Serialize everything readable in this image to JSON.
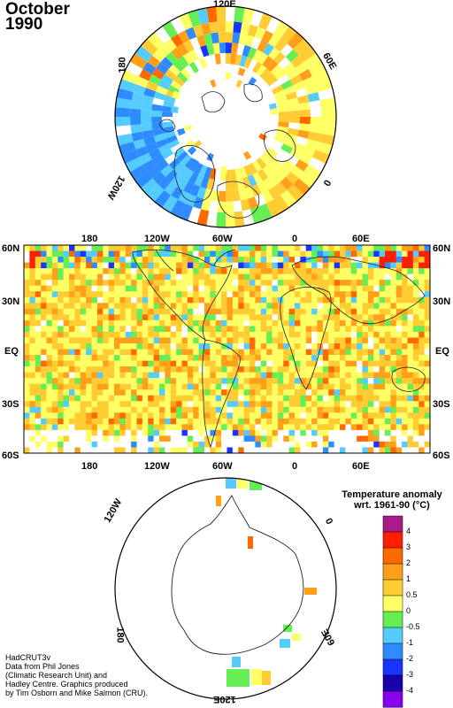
{
  "title": {
    "month": "October",
    "year": "1990"
  },
  "north_polar": {
    "labels": {
      "top": "120E",
      "left": "180",
      "right": "60E",
      "lower_right": "0",
      "lower_left": "120W"
    }
  },
  "world_map": {
    "top_lon_labels": [
      "180",
      "120W",
      "60W",
      "0",
      "60E"
    ],
    "bottom_lon_labels": [
      "180",
      "120W",
      "60W",
      "0",
      "60E"
    ],
    "left_lat_labels": [
      "60N",
      "30N",
      "EQ",
      "30S",
      "60S"
    ],
    "right_lat_labels": [
      "60N",
      "30N",
      "EQ",
      "30S",
      "60S"
    ]
  },
  "south_polar": {
    "labels": {
      "upper_left": "120W",
      "upper_right": "0",
      "lower_left": "180",
      "lower_right": "60E",
      "bottom": "120E"
    }
  },
  "legend": {
    "title_line1": "Temperature anomaly",
    "title_line2": "wrt. 1961-90  (°C)",
    "values": [
      "4",
      "3",
      "2",
      "1",
      "0.5",
      "0",
      "-0.5",
      "-1",
      "-2",
      "-3",
      "-4"
    ],
    "colors": [
      "#aa1a88",
      "#ff1f00",
      "#ff6a00",
      "#ff9f1a",
      "#ffcc33",
      "#ffff66",
      "#66ee55",
      "#55ccff",
      "#2f8cff",
      "#1a33ff",
      "#1a00aa",
      "#8800ee"
    ]
  },
  "credit": {
    "lines": [
      "HadCRUT3v",
      "Data from Phil Jones",
      "(Climatic Research Unit) and",
      "Hadley Centre.  Graphics produced",
      "by Tim Osborn and Mike Salmon (CRU)."
    ]
  }
}
